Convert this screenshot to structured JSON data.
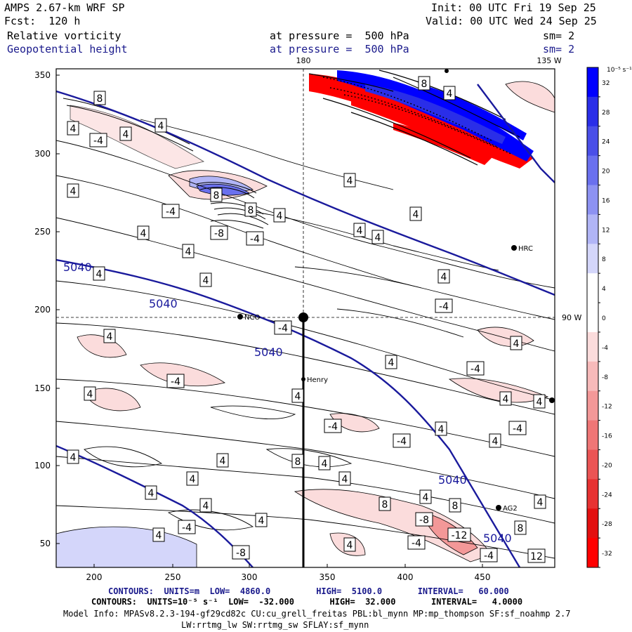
{
  "header": {
    "left_line1": "AMPS 2.67-km WRF SP",
    "left_line2": "Fcst:  120 h",
    "right_line1": "Init: 00 UTC Fri 19 Sep 25",
    "right_line2": "Valid: 00 UTC Wed 24 Sep 25",
    "field1_name": "Relative vorticity",
    "field1_level": "at pressure =  500 hPa",
    "field1_sm": "sm= 2",
    "field2_name": "Geopotential height",
    "field2_level": "at pressure =  500 hPa",
    "field2_sm": "sm= 2"
  },
  "map": {
    "lon_label_top_center": "180",
    "lon_label_top_right": "135 W",
    "lat_label_right": "90 W",
    "x_ticks": [
      "200",
      "250",
      "300",
      "350",
      "400",
      "450"
    ],
    "y_ticks": [
      "350",
      "300",
      "250",
      "200",
      "150",
      "100",
      "50"
    ],
    "stations": [
      {
        "name": "HRC",
        "x": 732,
        "y": 353
      },
      {
        "name": "NCO",
        "x": 342,
        "y": 451
      },
      {
        "name": "Henry",
        "x": 432,
        "y": 540
      },
      {
        "name": "AG2",
        "x": 710,
        "y": 723
      }
    ],
    "height_contour_labels": [
      "5040",
      "5040",
      "5040",
      "5040",
      "5040"
    ],
    "vorticity_labels": [
      "8",
      "4",
      "4",
      "-4",
      "4",
      "4",
      "-4",
      "8",
      "-8",
      "8",
      "-4",
      "4",
      "4",
      "4",
      "4",
      "4",
      "4",
      "4",
      "4",
      "4",
      "4",
      "-4",
      "-4",
      "4",
      "4",
      "-4",
      "4",
      "-4",
      "4",
      "-4",
      "-4",
      "4",
      "4",
      "4",
      "-4",
      "4",
      "4",
      "4",
      "8",
      "4",
      "4",
      "4",
      "4",
      "4",
      "4",
      "4",
      "-4",
      "8",
      "4",
      "-8",
      "-12",
      "4",
      "-4",
      "4",
      "8",
      "-4",
      "4",
      "8",
      "-8",
      "12",
      "8",
      "4"
    ]
  },
  "colorbar": {
    "unit_label": "10⁻⁵ s⁻¹",
    "labels": [
      "32",
      "28",
      "24",
      "20",
      "16",
      "12",
      "8",
      "4",
      "0",
      "-4",
      "-8",
      "-12",
      "-16",
      "-20",
      "-24",
      "-28",
      "-32"
    ],
    "colors": [
      "#0000ff",
      "#2a2ee8",
      "#4a4fe8",
      "#6a70ee",
      "#8d92f2",
      "#b1b5f6",
      "#d4d6fa",
      "#ffffff",
      "#ffffff",
      "#fbdcdc",
      "#f7baba",
      "#f39898",
      "#ef7676",
      "#eb5454",
      "#e73232",
      "#e31010",
      "#ff0000"
    ]
  },
  "footer": {
    "line1_blue": "CONTOURS:  UNITS=m  LOW=  4860.0         HIGH=  5100.0       INTERVAL=   60.000",
    "line2": "CONTOURS:  UNITS=10⁻⁵ s⁻¹  LOW=  -32.000       HIGH=  32.000       INTERVAL=   4.0000",
    "line3": "Model Info: MPASv8.2.3-194-gf29cd82c CU:cu_grell_freitas PBL:bl_mynn MP:mp_thompson SF:sf_noahmp 2.7",
    "line4": "LW:rrtmg_lw SW:rrtmg_sw SFLAY:sf_mynn"
  },
  "colors": {
    "height_contour": "#1a1a9c",
    "positive": "#0000ff",
    "negative": "#ff0000"
  }
}
